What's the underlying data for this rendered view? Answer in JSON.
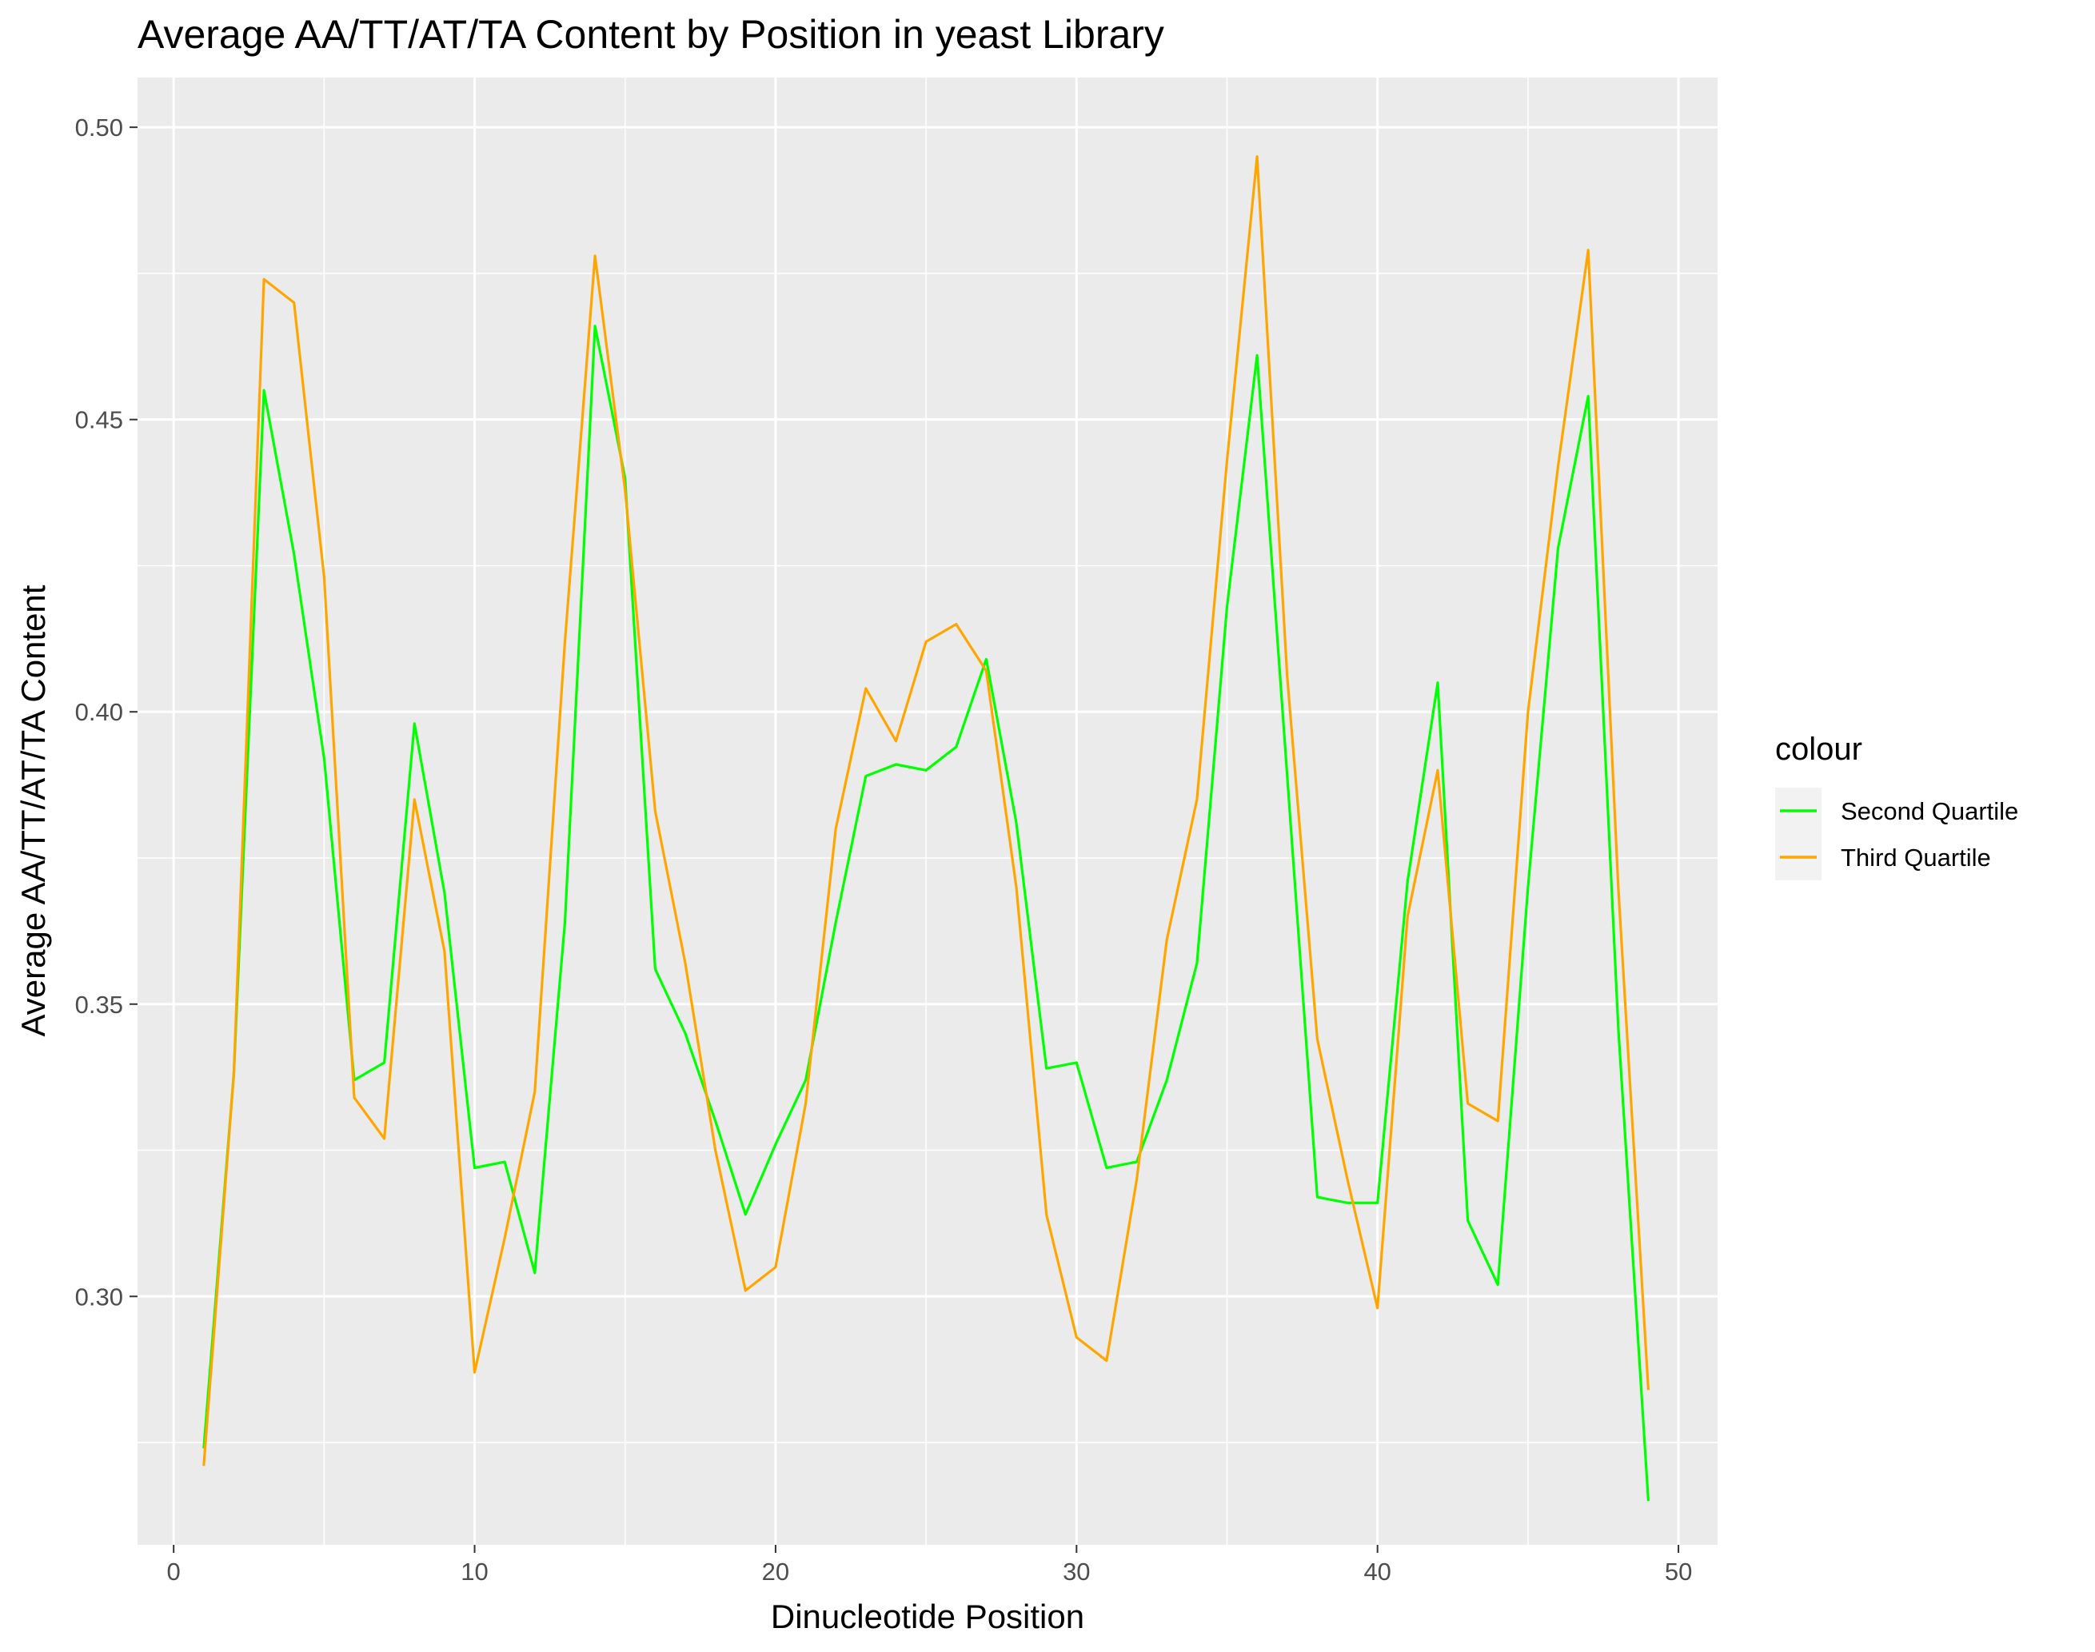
{
  "chart_data": {
    "type": "line",
    "title": "Average AA/TT/AT/TA Content by Position in yeast Library",
    "xlabel": "Dinucleotide Position",
    "ylabel": "Average AA/TT/AT/TA Content",
    "xlim": [
      -1.2,
      51.3
    ],
    "ylim": [
      0.2575,
      0.5085
    ],
    "x_ticks": [
      0,
      10,
      20,
      30,
      40,
      50
    ],
    "y_ticks": [
      0.3,
      0.35,
      0.4,
      0.45,
      0.5
    ],
    "x_tick_labels": [
      "0",
      "10",
      "20",
      "30",
      "40",
      "50"
    ],
    "y_tick_labels": [
      "0.30",
      "0.35",
      "0.40",
      "0.45",
      "0.50"
    ],
    "grid": true,
    "legend_position": "right",
    "legend_title": "colour",
    "colors": {
      "panel_background": "#ebebeb",
      "grid": "#ffffff",
      "second_quartile": "#00ff00",
      "third_quartile": "#ffa500"
    },
    "x": [
      1,
      2,
      3,
      4,
      5,
      6,
      7,
      8,
      9,
      10,
      11,
      12,
      13,
      14,
      15,
      16,
      17,
      18,
      19,
      20,
      21,
      22,
      23,
      24,
      25,
      26,
      27,
      28,
      29,
      30,
      31,
      32,
      33,
      34,
      35,
      36,
      37,
      38,
      39,
      40,
      41,
      42,
      43,
      44,
      45,
      46,
      47,
      48,
      49
    ],
    "series": [
      {
        "name": "Second Quartile",
        "color": "#00ff00",
        "values": [
          0.274,
          0.338,
          0.455,
          0.427,
          0.392,
          0.337,
          0.34,
          0.398,
          0.369,
          0.322,
          0.323,
          0.304,
          0.364,
          0.466,
          0.44,
          0.356,
          0.345,
          0.33,
          0.314,
          0.326,
          0.337,
          0.364,
          0.389,
          0.391,
          0.39,
          0.394,
          0.409,
          0.381,
          0.339,
          0.34,
          0.322,
          0.323,
          0.337,
          0.357,
          0.418,
          0.461,
          0.389,
          0.317,
          0.316,
          0.316,
          0.371,
          0.405,
          0.313,
          0.302,
          0.37,
          0.428,
          0.454,
          0.346,
          0.265
        ]
      },
      {
        "name": "Third Quartile",
        "color": "#ffa500",
        "values": [
          0.271,
          0.338,
          0.474,
          0.47,
          0.423,
          0.334,
          0.327,
          0.385,
          0.359,
          0.287,
          0.31,
          0.335,
          0.412,
          0.478,
          0.438,
          0.383,
          0.357,
          0.325,
          0.301,
          0.305,
          0.333,
          0.38,
          0.404,
          0.395,
          0.412,
          0.415,
          0.407,
          0.37,
          0.314,
          0.293,
          0.289,
          0.32,
          0.361,
          0.385,
          0.443,
          0.495,
          0.406,
          0.344,
          0.32,
          0.298,
          0.365,
          0.39,
          0.333,
          0.33,
          0.4,
          0.442,
          0.479,
          0.37,
          0.284
        ]
      }
    ]
  }
}
